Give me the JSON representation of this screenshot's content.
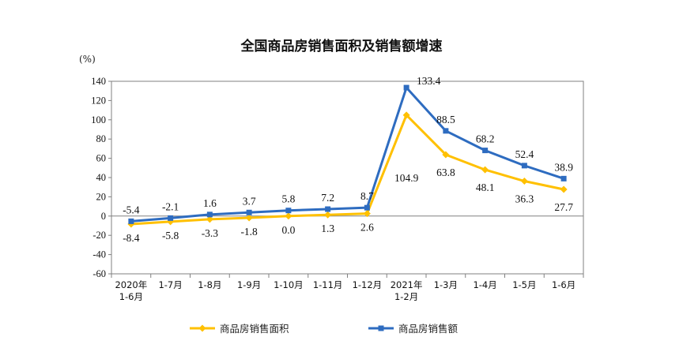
{
  "chart_data": {
    "type": "line",
    "title": "全国商品房销售面积及销售额增速",
    "ylabel": "(%)",
    "ylim": [
      -60,
      140
    ],
    "yticks": [
      140,
      120,
      100,
      80,
      60,
      40,
      20,
      0,
      -20,
      -40,
      -60
    ],
    "categories": [
      [
        "2020年",
        "1-6月"
      ],
      [
        "1-7月"
      ],
      [
        "1-8月"
      ],
      [
        "1-9月"
      ],
      [
        "1-10月"
      ],
      [
        "1-11月"
      ],
      [
        "1-12月"
      ],
      [
        "2021年",
        "1-2月"
      ],
      [
        "1-3月"
      ],
      [
        "1-4月"
      ],
      [
        "1-5月"
      ],
      [
        "1-6月"
      ]
    ],
    "series": [
      {
        "name": "商品房销售面积",
        "color": "#FFC000",
        "marker": "diamond",
        "values": [
          -8.4,
          -5.8,
          -3.3,
          -1.8,
          0.0,
          1.3,
          2.6,
          104.9,
          63.8,
          48.1,
          36.3,
          27.7
        ],
        "labels": [
          "-8.4",
          "-5.8",
          "-3.3",
          "-1.8",
          "0.0",
          "1.3",
          "2.6",
          "104.9",
          "63.8",
          "48.1",
          "36.3",
          "27.7"
        ],
        "label_position": "below"
      },
      {
        "name": "商品房销售额",
        "color": "#2E6CC0",
        "marker": "square",
        "values": [
          -5.4,
          -2.1,
          1.6,
          3.7,
          5.8,
          7.2,
          8.7,
          133.4,
          88.5,
          68.2,
          52.4,
          38.9
        ],
        "labels": [
          "-5.4",
          "-2.1",
          "1.6",
          "3.7",
          "5.8",
          "7.2",
          "8.7",
          "133.4",
          "88.5",
          "68.2",
          "52.4",
          "38.9"
        ],
        "label_position": "above"
      }
    ],
    "legend": "bottom",
    "grid": false
  }
}
